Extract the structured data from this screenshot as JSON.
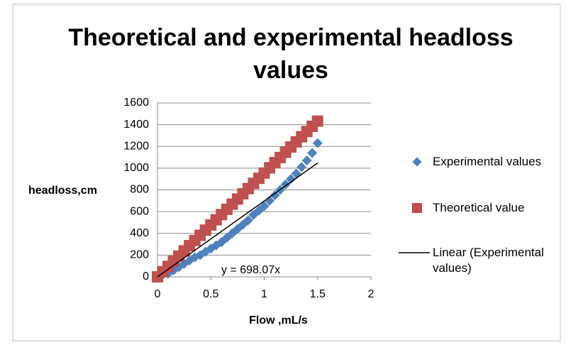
{
  "chart_data": {
    "type": "scatter",
    "title": "Theoretical and experimental headloss values",
    "xlabel": "Flow ,mL/s",
    "ylabel": "headloss,cm",
    "xlim": [
      0,
      2
    ],
    "xticks": [
      0,
      0.5,
      1,
      1.5,
      2
    ],
    "ylim": [
      0,
      1600
    ],
    "yticks": [
      0,
      200,
      400,
      600,
      800,
      1000,
      1200,
      1400,
      1600
    ],
    "grid": true,
    "legend": "right",
    "series": [
      {
        "name": "Experimental values",
        "color": "#4f81bd",
        "marker": "diamond",
        "x": [
          0.05,
          0.1,
          0.15,
          0.2,
          0.25,
          0.3,
          0.35,
          0.4,
          0.45,
          0.5,
          0.55,
          0.6,
          0.65,
          0.7,
          0.75,
          0.8,
          0.85,
          0.9,
          0.95,
          1.0,
          1.05,
          1.1,
          1.15,
          1.2,
          1.25,
          1.3,
          1.35,
          1.4,
          1.45,
          1.5
        ],
        "values": [
          20,
          30,
          60,
          90,
          120,
          150,
          180,
          200,
          230,
          260,
          290,
          320,
          360,
          400,
          440,
          480,
          520,
          570,
          610,
          650,
          700,
          750,
          800,
          850,
          900,
          950,
          1010,
          1070,
          1140,
          1230
        ]
      },
      {
        "name": "Theoretical value",
        "color": "#c0504d",
        "marker": "square",
        "x": [
          0,
          0.05,
          0.1,
          0.15,
          0.2,
          0.25,
          0.3,
          0.35,
          0.4,
          0.45,
          0.5,
          0.55,
          0.6,
          0.65,
          0.7,
          0.75,
          0.8,
          0.85,
          0.9,
          0.95,
          1.0,
          1.05,
          1.1,
          1.15,
          1.2,
          1.25,
          1.3,
          1.35,
          1.4,
          1.45,
          1.5
        ],
        "values": [
          0,
          48,
          96,
          143,
          191,
          239,
          287,
          334,
          382,
          430,
          478,
          525,
          573,
          621,
          669,
          716,
          764,
          812,
          860,
          907,
          955,
          1003,
          1051,
          1098,
          1146,
          1194,
          1242,
          1289,
          1337,
          1385,
          1433
        ]
      }
    ],
    "trendline": {
      "name": "Linear (Experimental values)",
      "equation": "y = 698.07x",
      "slope": 698.07,
      "x": [
        0,
        1.5
      ],
      "color": "#000000"
    }
  }
}
